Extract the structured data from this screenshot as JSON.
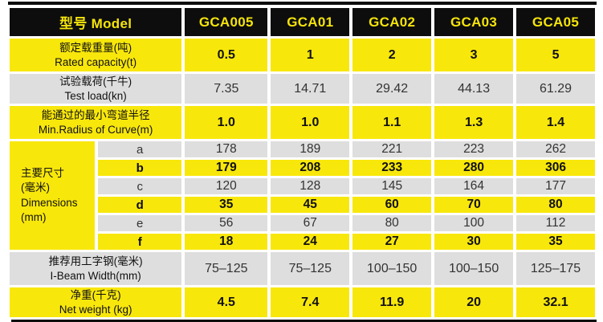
{
  "colors": {
    "yellow": "#f8e70b",
    "gray": "#dedede",
    "header_bg": "#0d0d0d",
    "header_text": "#f5e40a",
    "rule_black": "#0d0d0d"
  },
  "table": {
    "header": {
      "label": "型号 Model",
      "models": [
        "GCA005",
        "GCA01",
        "GCA02",
        "GCA03",
        "GCA05"
      ]
    },
    "rows": {
      "rated_capacity": {
        "zh": "额定载重量(吨)",
        "en": "Rated capacity(t)",
        "values": [
          "0.5",
          "1",
          "2",
          "3",
          "5"
        ]
      },
      "test_load": {
        "zh": "试验载荷(千牛)",
        "en": "Test load(kn)",
        "values": [
          "7.35",
          "14.71",
          "29.42",
          "44.13",
          "61.29"
        ]
      },
      "min_radius": {
        "zh": "能通过的最小弯道半径",
        "en": "Min.Radius of Curve(m)",
        "values": [
          "1.0",
          "1.0",
          "1.1",
          "1.3",
          "1.4"
        ]
      },
      "i_beam": {
        "zh": "推荐用工字钢(毫米)",
        "en": "I-Beam Width(mm)",
        "values": [
          "75–125",
          "75–125",
          "100–150",
          "100–150",
          "125–175"
        ]
      },
      "net_weight": {
        "zh": "净重(千克)",
        "en": "Net weight (kg)",
        "values": [
          "4.5",
          "7.4",
          "11.9",
          "20",
          "32.1"
        ]
      }
    },
    "dimensions": {
      "label_lines": {
        "l0": "主要尺寸",
        "l1": "(毫米)",
        "l2": "Dimensions",
        "l3": "(mm)"
      },
      "sub_rows": {
        "a": {
          "letter": "a",
          "values": [
            "178",
            "189",
            "221",
            "223",
            "262"
          ]
        },
        "b": {
          "letter": "b",
          "values": [
            "179",
            "208",
            "233",
            "280",
            "306"
          ]
        },
        "c": {
          "letter": "c",
          "values": [
            "120",
            "128",
            "145",
            "164",
            "177"
          ]
        },
        "d": {
          "letter": "d",
          "values": [
            "35",
            "45",
            "60",
            "70",
            "80"
          ]
        },
        "e": {
          "letter": "e",
          "values": [
            "56",
            "67",
            "80",
            "100",
            "112"
          ]
        },
        "f": {
          "letter": "f",
          "values": [
            "18",
            "24",
            "27",
            "30",
            "35"
          ]
        }
      }
    }
  }
}
